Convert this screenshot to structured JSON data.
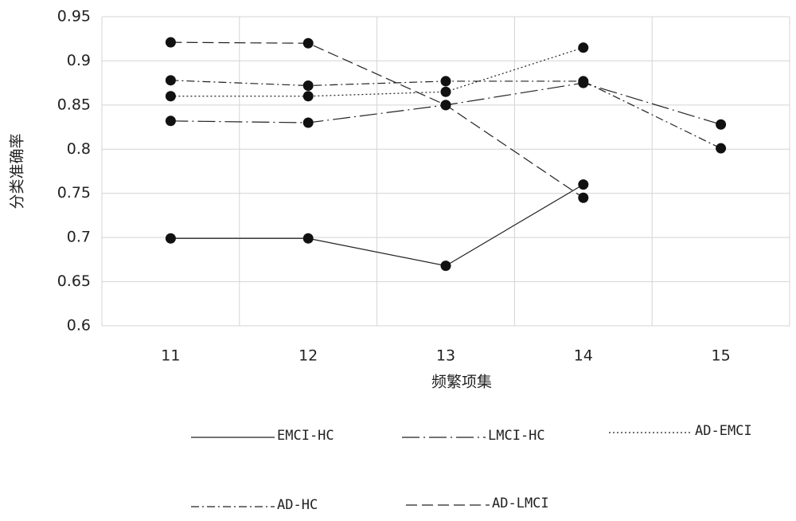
{
  "chart_data": {
    "type": "line",
    "x_label": "频繁项集",
    "y_label": "分类准确率",
    "categories": [
      "11",
      "12",
      "13",
      "14",
      "15"
    ],
    "ylim": [
      0.6,
      0.95
    ],
    "yticks": [
      0.6,
      0.65,
      0.7,
      0.75,
      0.8,
      0.85,
      0.9,
      0.95
    ],
    "grid": true,
    "legend": "bottom",
    "series": [
      {
        "name": "EMCI-HC",
        "color": "#222222",
        "style": "solid",
        "values": [
          0.699,
          0.699,
          0.668,
          0.76,
          null
        ]
      },
      {
        "name": "LMCI-HC",
        "color": "#222222",
        "style": "longdashdot",
        "values": [
          0.832,
          0.83,
          0.85,
          0.875,
          0.828
        ]
      },
      {
        "name": "AD-EMCI",
        "color": "#222222",
        "style": "dotted",
        "values": [
          0.86,
          0.86,
          0.865,
          0.915,
          null
        ]
      },
      {
        "name": "AD-HC",
        "color": "#222222",
        "style": "dashdot",
        "values": [
          0.878,
          0.872,
          0.877,
          0.877,
          0.801
        ]
      },
      {
        "name": "AD-LMCI",
        "color": "#222222",
        "style": "dashed",
        "values": [
          0.921,
          0.92,
          0.85,
          0.745,
          null
        ]
      }
    ]
  }
}
